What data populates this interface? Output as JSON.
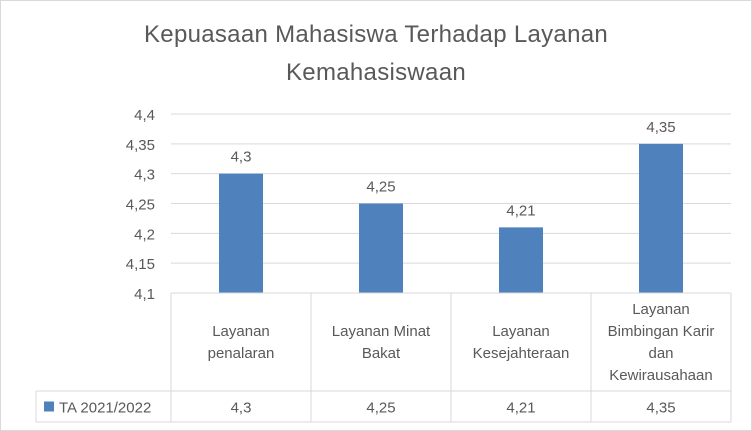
{
  "chart_data": {
    "type": "bar",
    "title_lines": [
      "Kepuasaan Mahasiswa Terhadap Layanan",
      "Kemahasiswaan"
    ],
    "categories": [
      [
        "Layanan",
        "penalaran"
      ],
      [
        "Layanan Minat",
        "Bakat"
      ],
      [
        "Layanan",
        "Kesejahteraan"
      ],
      [
        "Layanan",
        "Bimbingan Karir",
        "dan",
        "Kewirausahaan"
      ]
    ],
    "series": [
      {
        "name": "TA 2021/2022",
        "values": [
          4.3,
          4.25,
          4.21,
          4.35
        ],
        "value_labels": [
          "4,3",
          "4,25",
          "4,21",
          "4,35"
        ],
        "color": "#4f81bd"
      }
    ],
    "yticks": [
      4.1,
      4.15,
      4.2,
      4.25,
      4.3,
      4.35,
      4.4
    ],
    "ytick_labels": [
      "4,1",
      "4,15",
      "4,2",
      "4,25",
      "4,3",
      "4,35",
      "4,4"
    ],
    "ylim": [
      4.1,
      4.4
    ],
    "grid": true,
    "legend": "data-table",
    "data_table": true,
    "xlabel": "",
    "ylabel": ""
  }
}
